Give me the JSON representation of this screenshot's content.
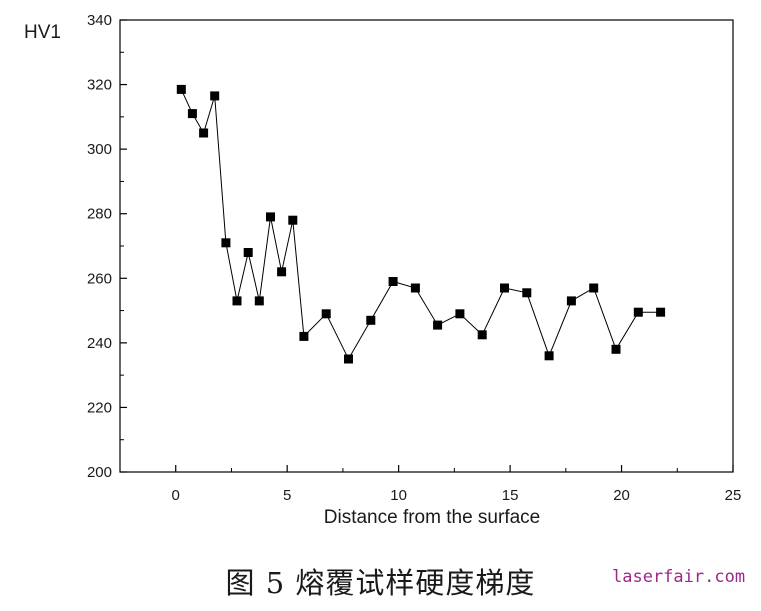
{
  "chart_data": {
    "type": "line",
    "ylabel": "HV1",
    "xlabel": "Distance from the surface",
    "xlim": [
      -2.5,
      25
    ],
    "ylim": [
      200,
      340
    ],
    "x_ticks": [
      0,
      5,
      10,
      15,
      20,
      25
    ],
    "y_ticks": [
      200,
      220,
      240,
      260,
      280,
      300,
      320,
      340
    ],
    "marker": "square",
    "line_color": "#000000",
    "series": [
      {
        "x": [
          0.25,
          0.75,
          1.25,
          1.75,
          2.25,
          2.75,
          3.25,
          3.75,
          4.25,
          4.75,
          5.25,
          5.75,
          6.75,
          7.75,
          8.75,
          9.75,
          10.75,
          11.75,
          12.75,
          13.75,
          14.75,
          15.75,
          16.75,
          17.75,
          18.75,
          19.75,
          20.75,
          21.75
        ],
        "y": [
          318.5,
          311,
          305,
          316.5,
          271,
          253,
          268,
          253,
          279,
          262,
          278,
          242,
          249,
          235,
          247,
          259,
          257,
          245.5,
          249,
          242.5,
          257,
          255.5,
          236,
          253,
          257,
          238,
          249.5,
          249.5
        ]
      }
    ]
  },
  "caption": "图 5 熔覆试样硬度梯度",
  "watermark": "laserfair.com"
}
